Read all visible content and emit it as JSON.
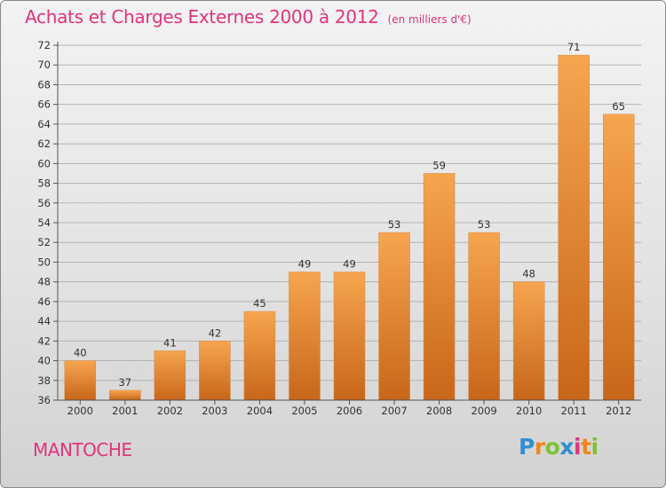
{
  "title": "Achats et Charges Externes 2000 à 2012",
  "unit_label": "(en milliers d'€)",
  "city": "MANTOCHE",
  "logo": {
    "text": "Proxiti",
    "letters": [
      "P",
      "r",
      "o",
      "x",
      "i",
      "t",
      "i"
    ],
    "colors": [
      "#2f8fd1",
      "#f0861c",
      "#7cc233",
      "#2f8fd1",
      "#e2337e",
      "#f0861c",
      "#7cc233"
    ]
  },
  "colors": {
    "title": "#e2337e",
    "bar_light": "#f6a54f",
    "bar_dark": "#c8661a",
    "grid": "#b4b4b4"
  },
  "chart_data": {
    "type": "bar",
    "categories": [
      "2000",
      "2001",
      "2002",
      "2003",
      "2004",
      "2005",
      "2006",
      "2007",
      "2008",
      "2009",
      "2010",
      "2011",
      "2012"
    ],
    "values": [
      40,
      37,
      41,
      42,
      45,
      49,
      49,
      53,
      59,
      53,
      48,
      71,
      65
    ],
    "data_labels": [
      "40",
      "37",
      "41",
      "42",
      "45",
      "49",
      "49",
      "53",
      "59",
      "53",
      "48",
      "71",
      "65"
    ],
    "title": "Achats et Charges Externes 2000 à 2012",
    "xlabel": "",
    "ylabel": "",
    "ylim": [
      36,
      72
    ],
    "yticks": [
      "36",
      "38",
      "40",
      "42",
      "44",
      "46",
      "48",
      "50",
      "52",
      "54",
      "56",
      "58",
      "60",
      "62",
      "64",
      "66",
      "68",
      "70",
      "72"
    ],
    "grid": true,
    "legend": "none"
  }
}
